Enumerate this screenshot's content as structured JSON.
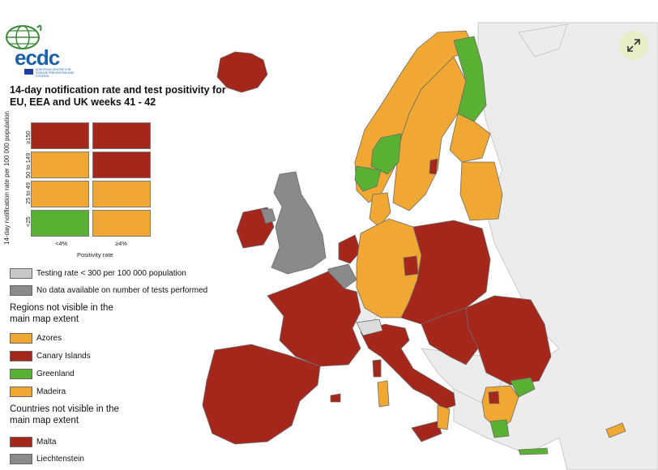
{
  "logo": {
    "text": "ecdc",
    "sub": "EUROPEAN CENTRE FOR DISEASE PREVENTION AND CONTROL"
  },
  "title": "14-day notification rate and test positivity for EU, EEA and UK weeks 41 - 42",
  "matrix": {
    "y_axis_label": "14-day notification rate per 100 000 population",
    "x_axis_label": "Positivity rate",
    "y_ticks": [
      "<25",
      "25 to 49",
      "50 to 149",
      "≥150"
    ],
    "x_ticks": [
      "<4%",
      "≥4%"
    ],
    "cells": [
      [
        "#5ab032",
        "#f0a832"
      ],
      [
        "#f0a832",
        "#f0a832"
      ],
      [
        "#f0a832",
        "#a5271b"
      ],
      [
        "#a5271b",
        "#a5271b"
      ]
    ]
  },
  "legend": {
    "testing_low": {
      "label": "Testing rate < 300 per 100 000 population",
      "color": "#c8c8c8"
    },
    "no_data": {
      "label": "No data available on number of tests performed",
      "color": "#8a8a8a"
    },
    "regions_heading": "Regions not visible in the main map extent",
    "regions": [
      {
        "label": "Azores",
        "color": "#f0a832"
      },
      {
        "label": "Canary Islands",
        "color": "#a5271b"
      },
      {
        "label": "Greenland",
        "color": "#5ab032"
      },
      {
        "label": "Madeira",
        "color": "#f0a832"
      }
    ],
    "countries_heading": "Countries not visible in the main map extent",
    "countries": [
      {
        "label": "Malta",
        "color": "#a5271b"
      },
      {
        "label": "Liechtenstein",
        "color": "#8a8a8a"
      }
    ]
  },
  "colors": {
    "red": "#a5271b",
    "orange": "#f0a832",
    "green": "#5ab032",
    "grey": "#8a8a8a",
    "light_grey": "#c8c8c8",
    "sea": "#ffffff",
    "other_land": "#ececec",
    "border": "#6b6b6b"
  },
  "icons": {
    "expand": "expand-icon",
    "logo": "globe-logo-icon",
    "eu_flag": "eu-flag-icon"
  }
}
